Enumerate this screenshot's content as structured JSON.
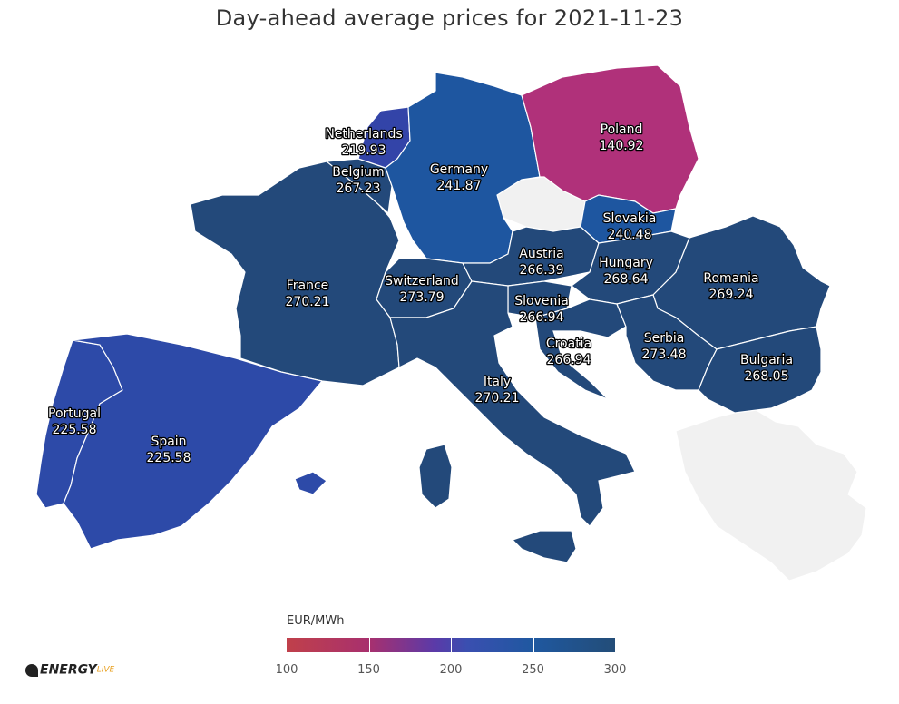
{
  "title": "Day-ahead average prices for 2021-11-23",
  "legend": {
    "unit": "EUR/MWh",
    "ticks": [
      "100",
      "150",
      "200",
      "250",
      "300"
    ],
    "scale": [
      100,
      300
    ],
    "colors": [
      "#c0404a",
      "#a8306e",
      "#5b3aa8",
      "#3a4fb0",
      "#1f58a0",
      "#234d78"
    ]
  },
  "logo": {
    "word": "ENERGY",
    "suffix": "LIVE"
  },
  "countries": [
    {
      "name": "Netherlands",
      "price": "219.93",
      "color": "#3344a8"
    },
    {
      "name": "Belgium",
      "price": "267.23",
      "color": "#23497a"
    },
    {
      "name": "Germany",
      "price": "241.87",
      "color": "#1e56a0"
    },
    {
      "name": "Poland",
      "price": "140.92",
      "color": "#b0317a"
    },
    {
      "name": "Slovakia",
      "price": "240.48",
      "color": "#1e56a0"
    },
    {
      "name": "Austria",
      "price": "266.39",
      "color": "#23497a"
    },
    {
      "name": "Hungary",
      "price": "268.64",
      "color": "#23497a"
    },
    {
      "name": "Romania",
      "price": "269.24",
      "color": "#23497a"
    },
    {
      "name": "France",
      "price": "270.21",
      "color": "#23497a"
    },
    {
      "name": "Switzerland",
      "price": "273.79",
      "color": "#23497a"
    },
    {
      "name": "Slovenia",
      "price": "266.94",
      "color": "#23497a"
    },
    {
      "name": "Croatia",
      "price": "266.94",
      "color": "#23497a"
    },
    {
      "name": "Serbia",
      "price": "273.48",
      "color": "#23497a"
    },
    {
      "name": "Bulgaria",
      "price": "268.05",
      "color": "#23497a"
    },
    {
      "name": "Italy",
      "price": "270.21",
      "color": "#23497a"
    },
    {
      "name": "Portugal",
      "price": "225.58",
      "color": "#2d4aa8"
    },
    {
      "name": "Spain",
      "price": "225.58",
      "color": "#2d4aa8"
    }
  ]
}
